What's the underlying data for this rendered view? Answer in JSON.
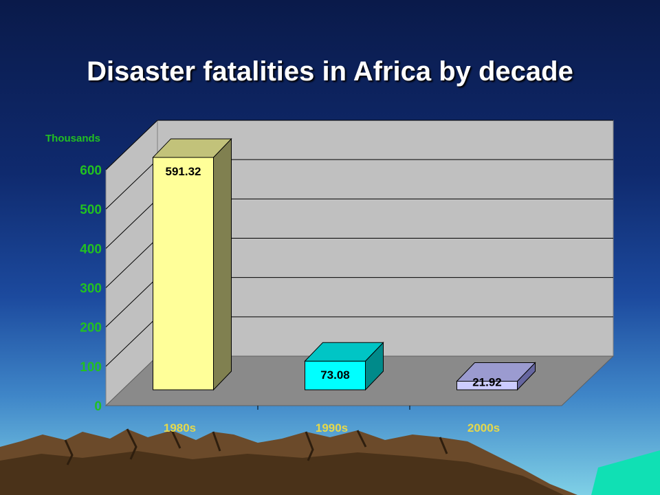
{
  "title": "Disaster fatalities in Africa by decade",
  "chart_data": {
    "type": "bar",
    "title": "Disaster fatalities in Africa by decade",
    "units_label": "Thousands",
    "categories": [
      "1980s",
      "1990s",
      "2000s"
    ],
    "values": [
      591.32,
      73.08,
      21.92
    ],
    "value_labels": [
      "591.32",
      "73.08",
      "21.92"
    ],
    "ylim": [
      0,
      600
    ],
    "yticks": [
      0,
      100,
      200,
      300,
      400,
      500,
      600
    ],
    "grid": true,
    "legend": "none",
    "colors": {
      "bars": [
        "#ffff99",
        "#00ffff",
        "#ccccff"
      ],
      "bar_tops": [
        "#c2c27a",
        "#00c5c5",
        "#9b9bd0"
      ],
      "bar_sides": [
        "#808050",
        "#008a8a",
        "#6666a0"
      ],
      "axis_labels": "#22c022",
      "category_labels": "#e6d84a",
      "wall": "#c0c0c0",
      "floor": "#8a8a8a",
      "title": "#ffffff"
    }
  }
}
